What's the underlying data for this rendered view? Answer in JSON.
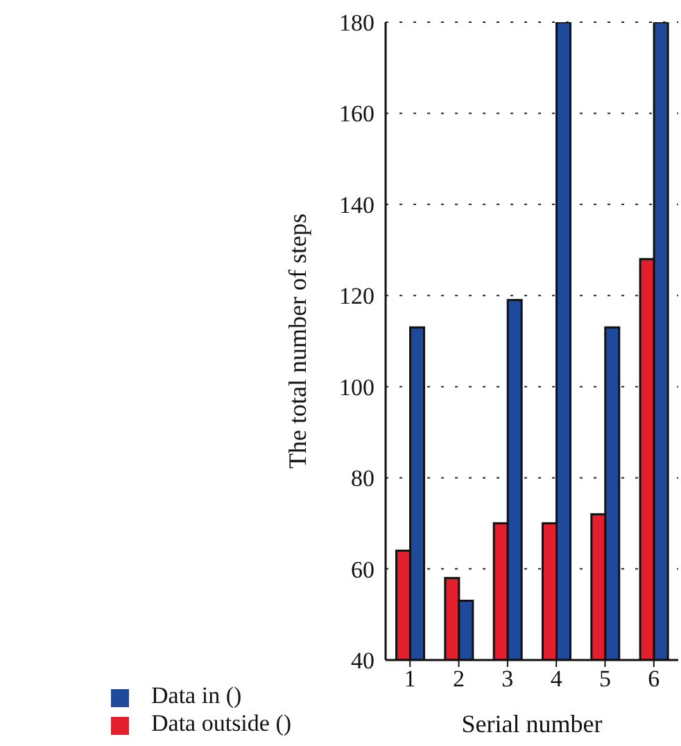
{
  "chart_data": {
    "type": "bar",
    "xlabel": "Serial number",
    "ylabel": "The total number of steps",
    "categories": [
      "1",
      "2",
      "3",
      "4",
      "5",
      "6"
    ],
    "series": [
      {
        "name": "Data outside ()",
        "color": "#e31e2d",
        "values": [
          64,
          58,
          70,
          70,
          72,
          128
        ]
      },
      {
        "name": "Data in ()",
        "color": "#1f4a9c",
        "values": [
          113,
          53,
          119,
          180,
          113,
          180
        ]
      }
    ],
    "ylim": [
      40,
      180
    ],
    "yticks": [
      40,
      60,
      80,
      100,
      120,
      140,
      160,
      180
    ],
    "grid": "y",
    "legend": "bottom left"
  }
}
